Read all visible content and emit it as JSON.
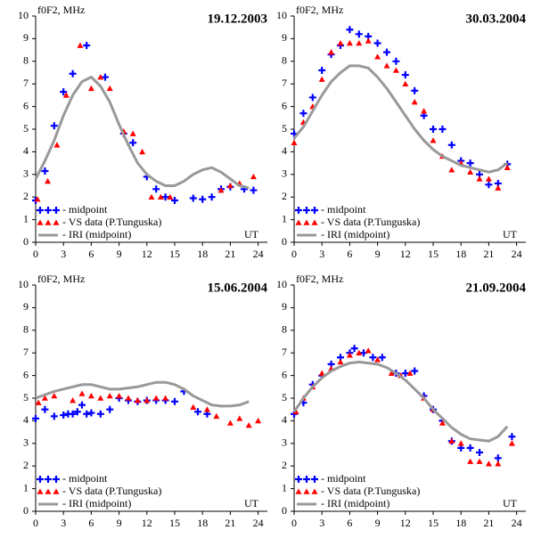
{
  "chart_data": [
    {
      "type": "line",
      "title": "19.12.2003",
      "ylabel": "f0F2, MHz",
      "xlabel": "UT",
      "xlim": [
        0,
        25
      ],
      "xticks": [
        0,
        3,
        6,
        9,
        12,
        15,
        18,
        21,
        24
      ],
      "ylim": [
        0,
        10
      ],
      "yticks": [
        0,
        1,
        2,
        3,
        4,
        5,
        6,
        7,
        8,
        9,
        10
      ],
      "series": [
        {
          "name": "- midpoint",
          "color": "#0000ff",
          "marker": "cross",
          "x": [
            0,
            1,
            2,
            3,
            4,
            5.5,
            7.5,
            9.5,
            10.5,
            12,
            13,
            14,
            15,
            17,
            18,
            19,
            20,
            21,
            22.5,
            23.5
          ],
          "values": [
            1.85,
            3.15,
            5.15,
            6.65,
            7.45,
            8.7,
            7.3,
            4.8,
            4.4,
            2.9,
            2.35,
            2.0,
            1.85,
            1.95,
            1.9,
            2.0,
            2.35,
            2.45,
            2.35,
            2.3
          ]
        },
        {
          "name": "- VS data (P.Tunguska)",
          "color": "#ff0000",
          "marker": "triangle",
          "x": [
            0.2,
            1.3,
            2.3,
            3.3,
            4.8,
            6,
            7,
            8,
            9.5,
            10.5,
            11.5,
            12.5,
            13.5,
            14.5,
            20,
            21,
            22,
            23.5
          ],
          "values": [
            1.9,
            2.7,
            4.3,
            6.5,
            8.7,
            6.8,
            7.3,
            6.8,
            4.9,
            4.8,
            4.0,
            2.0,
            2.0,
            2.0,
            2.3,
            2.5,
            2.6,
            2.9
          ]
        },
        {
          "name": "- IRI (midpoint)",
          "color": "#999999",
          "marker": "none",
          "x": [
            0,
            1,
            2,
            3,
            4,
            5,
            6,
            7,
            8,
            9,
            10,
            11,
            12,
            13,
            14,
            15,
            16,
            17,
            18,
            19,
            20,
            21,
            22,
            23
          ],
          "values": [
            2.8,
            3.6,
            4.5,
            5.6,
            6.5,
            7.1,
            7.3,
            6.9,
            6.2,
            5.2,
            4.3,
            3.5,
            3.0,
            2.7,
            2.5,
            2.5,
            2.7,
            3.0,
            3.2,
            3.3,
            3.1,
            2.8,
            2.5,
            2.4
          ]
        }
      ]
    },
    {
      "type": "line",
      "title": "30.03.2004",
      "ylabel": "f0F2, MHz",
      "xlabel": "UT",
      "xlim": [
        0,
        25
      ],
      "xticks": [
        0,
        3,
        6,
        9,
        12,
        15,
        18,
        21,
        24
      ],
      "ylim": [
        0,
        10
      ],
      "yticks": [
        0,
        1,
        2,
        3,
        4,
        5,
        6,
        7,
        8,
        9,
        10
      ],
      "series": [
        {
          "name": "- midpoint",
          "color": "#0000ff",
          "marker": "cross",
          "x": [
            0,
            1,
            2,
            3,
            4,
            5,
            6,
            7,
            8,
            9,
            10,
            11,
            12,
            13,
            14,
            15,
            16,
            17,
            18,
            19,
            20,
            21,
            22,
            23
          ],
          "values": [
            4.8,
            5.7,
            6.4,
            7.6,
            8.3,
            8.7,
            9.4,
            9.2,
            9.1,
            8.8,
            8.4,
            8.0,
            7.4,
            6.7,
            5.6,
            5.0,
            5.0,
            4.3,
            3.6,
            3.5,
            3.0,
            2.55,
            2.6,
            3.45
          ]
        },
        {
          "name": "- VS data (P.Tunguska)",
          "color": "#ff0000",
          "marker": "triangle",
          "x": [
            0,
            1,
            2,
            3,
            4,
            5,
            6,
            7,
            8,
            9,
            10,
            11,
            12,
            13,
            14,
            15,
            16,
            17,
            18,
            19,
            20,
            21,
            22,
            23
          ],
          "values": [
            4.4,
            5.3,
            6.0,
            7.2,
            8.4,
            8.8,
            8.8,
            8.8,
            8.9,
            8.2,
            7.8,
            7.6,
            7.0,
            6.2,
            5.8,
            4.5,
            3.8,
            3.2,
            3.5,
            3.1,
            2.8,
            2.8,
            2.4,
            3.3
          ]
        },
        {
          "name": "- IRI (midpoint)",
          "color": "#999999",
          "marker": "none",
          "x": [
            0,
            1,
            2,
            3,
            4,
            5,
            6,
            7,
            8,
            9,
            10,
            11,
            12,
            13,
            14,
            15,
            16,
            17,
            18,
            19,
            20,
            21,
            22,
            23
          ],
          "values": [
            4.6,
            5.1,
            5.8,
            6.5,
            7.1,
            7.5,
            7.8,
            7.8,
            7.7,
            7.3,
            6.8,
            6.2,
            5.6,
            5.0,
            4.5,
            4.1,
            3.8,
            3.6,
            3.4,
            3.3,
            3.2,
            3.1,
            3.2,
            3.5
          ]
        }
      ]
    },
    {
      "type": "line",
      "title": "15.06.2004",
      "ylabel": "f0F2, MHz",
      "xlabel": "UT",
      "xlim": [
        0,
        25
      ],
      "xticks": [
        0,
        3,
        6,
        9,
        12,
        15,
        18,
        21,
        24
      ],
      "ylim": [
        0,
        10
      ],
      "yticks": [
        0,
        1,
        2,
        3,
        4,
        5,
        6,
        7,
        8,
        9,
        10
      ],
      "series": [
        {
          "name": "- midpoint",
          "color": "#0000ff",
          "marker": "cross",
          "x": [
            0,
            1,
            2,
            3,
            3.5,
            4,
            4.5,
            5,
            5.5,
            6,
            7,
            8,
            9,
            10,
            11,
            12,
            13,
            14,
            15,
            16,
            17.5,
            18.5
          ],
          "values": [
            4.1,
            4.5,
            4.2,
            4.25,
            4.3,
            4.3,
            4.4,
            4.7,
            4.3,
            4.35,
            4.3,
            4.5,
            5.0,
            4.9,
            4.85,
            4.9,
            4.9,
            4.9,
            4.85,
            5.3,
            4.4,
            4.3
          ]
        },
        {
          "name": "- VS data (P.Tunguska)",
          "color": "#ff0000",
          "marker": "triangle",
          "x": [
            0.3,
            1,
            2,
            4,
            5,
            6,
            7,
            8,
            9,
            10,
            11,
            12,
            13,
            14,
            17,
            18.5,
            19.5,
            21,
            22,
            23,
            24
          ],
          "values": [
            4.8,
            5.0,
            5.1,
            4.9,
            5.2,
            5.1,
            5.0,
            5.1,
            5.1,
            5.0,
            4.9,
            4.9,
            5.0,
            5.0,
            4.6,
            4.5,
            4.2,
            3.9,
            4.1,
            3.8,
            4.0
          ]
        },
        {
          "name": "- IRI (midpoint)",
          "color": "#999999",
          "marker": "none",
          "x": [
            0,
            2,
            4,
            5,
            6,
            8,
            9,
            11,
            13,
            14,
            15,
            16,
            17,
            18,
            19,
            20,
            21,
            22,
            23
          ],
          "values": [
            5.0,
            5.3,
            5.5,
            5.6,
            5.6,
            5.4,
            5.4,
            5.5,
            5.7,
            5.7,
            5.6,
            5.4,
            5.1,
            4.9,
            4.7,
            4.65,
            4.65,
            4.7,
            4.85
          ]
        }
      ]
    },
    {
      "type": "line",
      "title": "21.09.2004",
      "ylabel": "f0F2, MHz",
      "xlabel": "UT",
      "xlim": [
        0,
        25
      ],
      "xticks": [
        0,
        3,
        6,
        9,
        12,
        15,
        18,
        21,
        24
      ],
      "ylim": [
        0,
        10
      ],
      "yticks": [
        0,
        1,
        2,
        3,
        4,
        5,
        6,
        7,
        8,
        9,
        10
      ],
      "series": [
        {
          "name": "- midpoint",
          "color": "#0000ff",
          "marker": "cross",
          "x": [
            0,
            1,
            2,
            3,
            4,
            5,
            6,
            6.5,
            7.5,
            8.5,
            9.5,
            11,
            12,
            13,
            14,
            15,
            16,
            17,
            18,
            19,
            20,
            22,
            23.5
          ],
          "values": [
            4.3,
            4.8,
            5.6,
            6.0,
            6.5,
            6.8,
            7.0,
            7.2,
            7.0,
            6.8,
            6.8,
            6.1,
            6.1,
            6.2,
            5.1,
            4.5,
            4.0,
            3.1,
            2.8,
            2.8,
            2.6,
            2.35,
            3.3
          ]
        },
        {
          "name": "- VS data (P.Tunguska)",
          "color": "#ff0000",
          "marker": "triangle",
          "x": [
            0.2,
            1,
            2,
            3,
            4,
            5,
            6,
            7,
            8,
            9,
            10.5,
            11.5,
            12.5,
            14,
            15,
            16,
            17,
            18,
            19,
            20,
            21,
            22,
            23.5
          ],
          "values": [
            4.4,
            5.0,
            5.5,
            6.1,
            6.3,
            6.6,
            6.9,
            7.0,
            7.1,
            6.7,
            6.1,
            6.0,
            6.1,
            5.0,
            4.5,
            3.9,
            3.1,
            3.0,
            2.2,
            2.2,
            2.1,
            2.1,
            3.0
          ]
        },
        {
          "name": "- IRI (midpoint)",
          "color": "#999999",
          "marker": "none",
          "x": [
            0,
            1,
            2,
            3,
            4,
            5,
            6,
            7,
            8,
            9,
            10,
            11,
            12,
            13,
            14,
            15,
            16,
            17,
            18,
            19,
            20,
            21,
            22,
            23
          ],
          "values": [
            4.4,
            5.0,
            5.5,
            5.9,
            6.2,
            6.4,
            6.55,
            6.6,
            6.55,
            6.5,
            6.35,
            6.1,
            5.8,
            5.4,
            5.0,
            4.5,
            4.1,
            3.7,
            3.4,
            3.2,
            3.15,
            3.1,
            3.3,
            3.75
          ]
        }
      ]
    }
  ]
}
